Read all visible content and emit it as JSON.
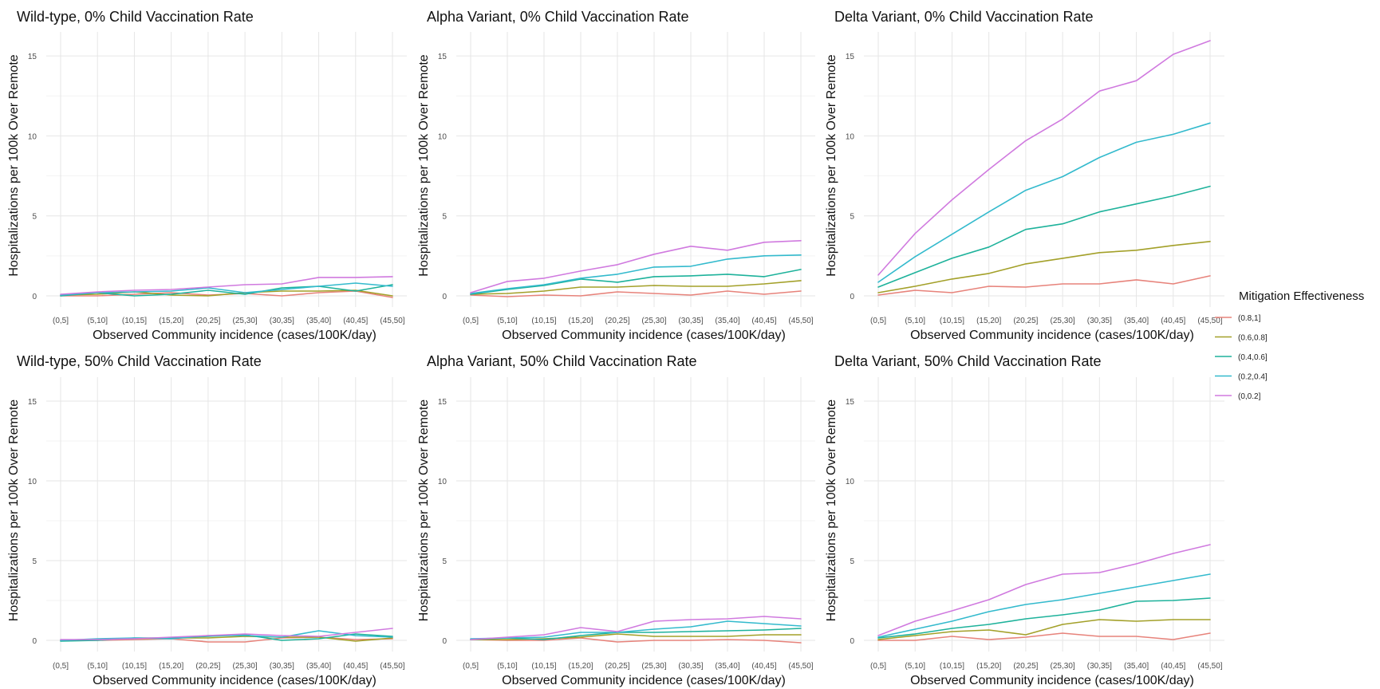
{
  "chart_data": {
    "type": "line",
    "layout": "3x2 facets",
    "categories": [
      "(0,5]",
      "(5,10]",
      "(10,15]",
      "(15,20]",
      "(20,25]",
      "(25,30]",
      "(30,35]",
      "(35,40]",
      "(40,45]",
      "(45,50]"
    ],
    "xlabel": "Observed Community incidence (cases/100K/day)",
    "ylabel": "Hospitalizations per 100k Over Remote",
    "ylim": [
      0,
      16.5
    ],
    "yticks": [
      0,
      5,
      10,
      15
    ],
    "grid": true,
    "legend": {
      "title": "Mitigation Effectiveness",
      "placement": "right",
      "entries": [
        {
          "name": "(0.8,1]",
          "color": "#E7837B"
        },
        {
          "name": "(0.6,0.8]",
          "color": "#A3A029"
        },
        {
          "name": "(0.4,0.6]",
          "color": "#1EB29B"
        },
        {
          "name": "(0.2,0.4]",
          "color": "#33BACD"
        },
        {
          "name": "(0,0.2]",
          "color": "#D07ADF"
        }
      ]
    },
    "panels": [
      {
        "title": "Wild-type, 0% Child Vaccination Rate",
        "series": [
          {
            "name": "(0.8,1]",
            "values": [
              0.0,
              0.0,
              0.1,
              0.2,
              0.05,
              0.15,
              0.0,
              0.2,
              0.3,
              -0.1
            ]
          },
          {
            "name": "(0.6,0.8]",
            "values": [
              0.05,
              0.1,
              0.25,
              0.05,
              0.0,
              0.2,
              0.3,
              0.3,
              0.35,
              0.0
            ]
          },
          {
            "name": "(0.4,0.6]",
            "values": [
              0.0,
              0.2,
              0.0,
              0.1,
              0.35,
              0.1,
              0.5,
              0.6,
              0.3,
              0.7
            ]
          },
          {
            "name": "(0.2,0.4]",
            "values": [
              0.05,
              0.2,
              0.25,
              0.3,
              0.5,
              0.2,
              0.4,
              0.6,
              0.8,
              0.6
            ]
          },
          {
            "name": "(0,0.2]",
            "values": [
              0.1,
              0.25,
              0.35,
              0.4,
              0.55,
              0.7,
              0.75,
              1.15,
              1.15,
              1.2
            ]
          }
        ]
      },
      {
        "title": "Alpha Variant, 0% Child Vaccination Rate",
        "series": [
          {
            "name": "(0.8,1]",
            "values": [
              0.05,
              -0.05,
              0.05,
              0.0,
              0.25,
              0.15,
              0.05,
              0.3,
              0.1,
              0.3
            ]
          },
          {
            "name": "(0.6,0.8]",
            "values": [
              0.1,
              0.15,
              0.3,
              0.55,
              0.55,
              0.65,
              0.6,
              0.6,
              0.75,
              0.95
            ]
          },
          {
            "name": "(0.4,0.6]",
            "values": [
              0.1,
              0.4,
              0.65,
              1.05,
              0.85,
              1.2,
              1.25,
              1.35,
              1.2,
              1.65
            ]
          },
          {
            "name": "(0.2,0.4]",
            "values": [
              0.15,
              0.45,
              0.7,
              1.1,
              1.35,
              1.8,
              1.85,
              2.3,
              2.5,
              2.55
            ]
          },
          {
            "name": "(0,0.2]",
            "values": [
              0.2,
              0.9,
              1.1,
              1.55,
              1.95,
              2.6,
              3.1,
              2.85,
              3.35,
              3.45
            ]
          }
        ]
      },
      {
        "title": "Delta Variant, 0% Child Vaccination Rate",
        "series": [
          {
            "name": "(0.8,1]",
            "values": [
              0.05,
              0.35,
              0.2,
              0.6,
              0.55,
              0.75,
              0.75,
              1.0,
              0.75,
              1.25
            ]
          },
          {
            "name": "(0.6,0.8]",
            "values": [
              0.2,
              0.6,
              1.05,
              1.4,
              2.0,
              2.35,
              2.7,
              2.85,
              3.15,
              3.4
            ]
          },
          {
            "name": "(0.4,0.6]",
            "values": [
              0.55,
              1.45,
              2.35,
              3.05,
              4.15,
              4.5,
              5.25,
              5.75,
              6.25,
              6.85
            ]
          },
          {
            "name": "(0.2,0.4]",
            "values": [
              0.85,
              2.45,
              3.85,
              5.25,
              6.6,
              7.45,
              8.65,
              9.6,
              10.1,
              10.8
            ]
          },
          {
            "name": "(0,0.2]",
            "values": [
              1.3,
              3.9,
              6.0,
              7.9,
              9.7,
              11.05,
              12.8,
              13.45,
              15.1,
              15.95
            ]
          }
        ]
      },
      {
        "title": "Wild-type, 50% Child Vaccination Rate",
        "series": [
          {
            "name": "(0.8,1]",
            "values": [
              0.0,
              0.0,
              0.05,
              0.1,
              -0.1,
              -0.1,
              0.15,
              0.2,
              0.05,
              0.1
            ]
          },
          {
            "name": "(0.6,0.8]",
            "values": [
              0.0,
              0.05,
              0.1,
              0.15,
              0.15,
              0.25,
              0.2,
              0.2,
              -0.05,
              0.15
            ]
          },
          {
            "name": "(0.4,0.6]",
            "values": [
              -0.05,
              0.0,
              0.15,
              0.15,
              0.25,
              0.35,
              0.0,
              0.1,
              0.4,
              0.25
            ]
          },
          {
            "name": "(0.2,0.4]",
            "values": [
              0.0,
              0.1,
              0.15,
              0.1,
              0.3,
              0.3,
              0.2,
              0.6,
              0.3,
              0.2
            ]
          },
          {
            "name": "(0,0.2]",
            "values": [
              0.05,
              0.05,
              0.1,
              0.2,
              0.3,
              0.4,
              0.3,
              0.25,
              0.5,
              0.75
            ]
          }
        ]
      },
      {
        "title": "Alpha Variant, 50% Child Vaccination Rate",
        "series": [
          {
            "name": "(0.8,1]",
            "values": [
              0.05,
              0.0,
              0.0,
              0.15,
              -0.1,
              0.0,
              0.0,
              0.05,
              0.0,
              -0.15
            ]
          },
          {
            "name": "(0.6,0.8]",
            "values": [
              0.05,
              0.05,
              0.1,
              0.2,
              0.4,
              0.25,
              0.25,
              0.25,
              0.35,
              0.35
            ]
          },
          {
            "name": "(0.4,0.6]",
            "values": [
              0.05,
              0.15,
              0.05,
              0.3,
              0.5,
              0.5,
              0.55,
              0.6,
              0.65,
              0.75
            ]
          },
          {
            "name": "(0.2,0.4]",
            "values": [
              0.1,
              0.15,
              0.2,
              0.5,
              0.5,
              0.7,
              0.85,
              1.2,
              1.05,
              0.9
            ]
          },
          {
            "name": "(0,0.2]",
            "values": [
              0.05,
              0.2,
              0.35,
              0.8,
              0.55,
              1.2,
              1.3,
              1.35,
              1.5,
              1.35
            ]
          }
        ]
      },
      {
        "title": "Delta Variant, 50% Child Vaccination Rate",
        "series": [
          {
            "name": "(0.8,1]",
            "values": [
              0.0,
              0.0,
              0.25,
              0.05,
              0.2,
              0.45,
              0.25,
              0.25,
              0.05,
              0.45
            ]
          },
          {
            "name": "(0.6,0.8]",
            "values": [
              0.05,
              0.3,
              0.55,
              0.65,
              0.35,
              1.0,
              1.3,
              1.2,
              1.3,
              1.3
            ]
          },
          {
            "name": "(0.4,0.6]",
            "values": [
              0.15,
              0.4,
              0.75,
              1.0,
              1.35,
              1.6,
              1.9,
              2.45,
              2.5,
              2.65
            ]
          },
          {
            "name": "(0.2,0.4]",
            "values": [
              0.2,
              0.7,
              1.2,
              1.8,
              2.25,
              2.55,
              2.95,
              3.35,
              3.75,
              4.15
            ]
          },
          {
            "name": "(0,0.2]",
            "values": [
              0.3,
              1.2,
              1.85,
              2.55,
              3.5,
              4.15,
              4.25,
              4.8,
              5.45,
              6.0
            ]
          }
        ]
      }
    ]
  }
}
